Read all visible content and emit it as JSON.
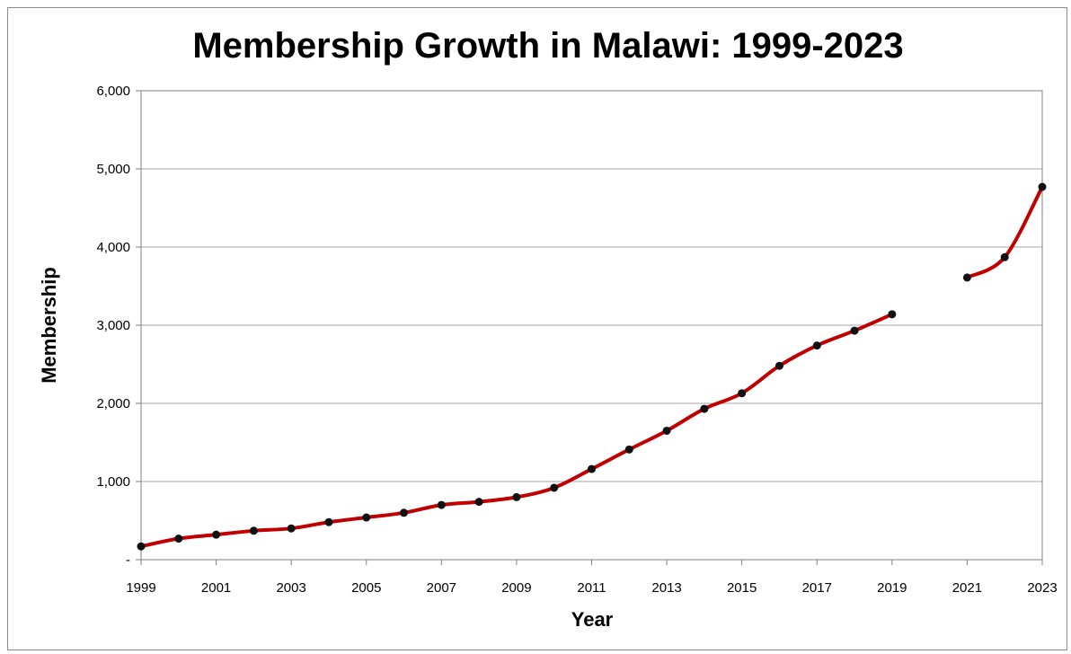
{
  "chart_data": {
    "type": "line",
    "title": "Membership Growth in Malawi: 1999-2023",
    "xlabel": "Year",
    "ylabel": "Membership",
    "xlim": [
      1999,
      2023
    ],
    "ylim": [
      0,
      6000
    ],
    "y_ticks": [
      0,
      1000,
      2000,
      3000,
      4000,
      5000,
      6000
    ],
    "y_tick_labels": [
      "-",
      "1,000",
      "2,000",
      "3,000",
      "4,000",
      "5,000",
      "6,000"
    ],
    "x_ticks": [
      1999,
      2001,
      2003,
      2005,
      2007,
      2009,
      2011,
      2013,
      2015,
      2017,
      2019,
      2021,
      2023
    ],
    "x_tick_labels": [
      "1999",
      "2001",
      "2003",
      "2005",
      "2007",
      "2009",
      "2011",
      "2013",
      "2015",
      "2017",
      "2019",
      "2021",
      "2023"
    ],
    "grid": true,
    "line_color": "#c00000",
    "marker_color": "#111111",
    "series": [
      {
        "segments": [
          {
            "x": [
              1999,
              2000,
              2001,
              2002,
              2003,
              2004,
              2005,
              2006,
              2007,
              2008,
              2009,
              2010,
              2011,
              2012,
              2013,
              2014,
              2015,
              2016,
              2017,
              2018,
              2019
            ],
            "y": [
              170,
              270,
              320,
              370,
              400,
              480,
              540,
              600,
              700,
              740,
              800,
              920,
              1160,
              1410,
              1650,
              1930,
              2130,
              2480,
              2740,
              2930,
              3140
            ]
          },
          {
            "x": [
              2021,
              2022,
              2023
            ],
            "y": [
              3610,
              3870,
              4770
            ]
          }
        ]
      }
    ]
  }
}
